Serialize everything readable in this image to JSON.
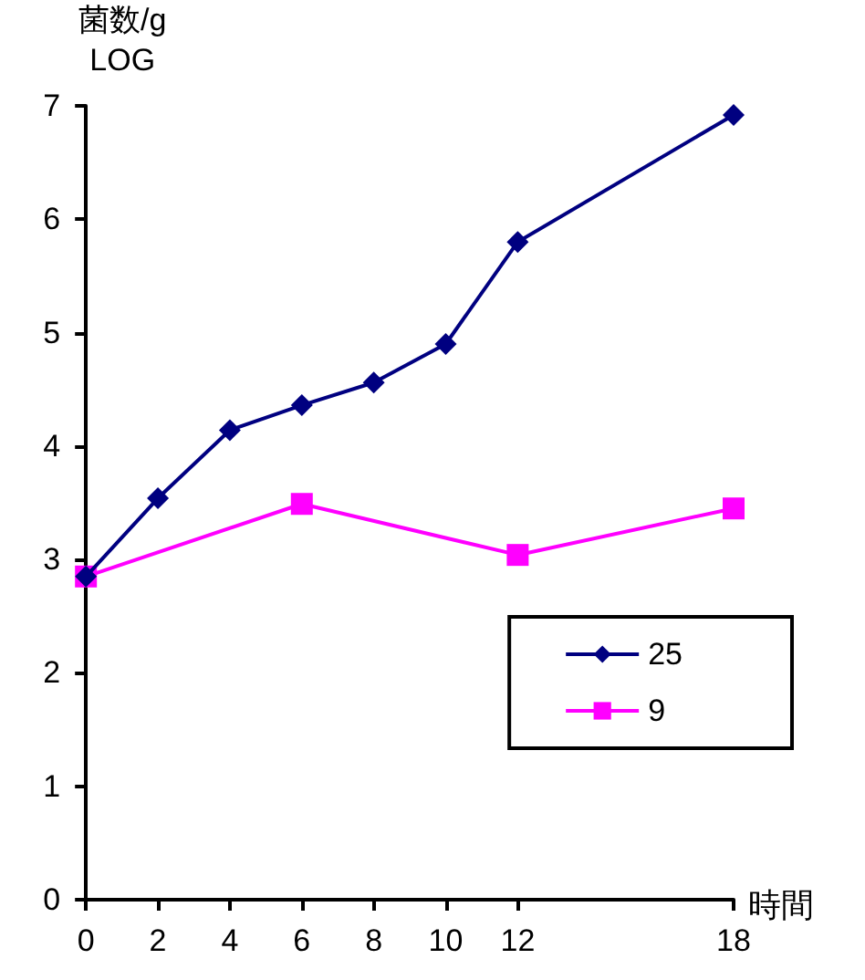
{
  "chart_data": {
    "type": "line",
    "xlabel": "時間",
    "ylabel": "菌数/g\nLOG",
    "x": [
      0,
      2,
      4,
      6,
      8,
      10,
      12,
      18
    ],
    "series": [
      {
        "name": "25",
        "color": "#000080",
        "marker": "diamond",
        "values": [
          2.85,
          3.54,
          4.14,
          4.36,
          4.56,
          4.9,
          5.8,
          6.92
        ]
      },
      {
        "name": "9",
        "color": "#ff00ff",
        "marker": "square",
        "x": [
          0,
          6,
          12,
          18
        ],
        "values": [
          2.85,
          3.49,
          3.04,
          3.45
        ]
      }
    ],
    "xlim": [
      0,
      18
    ],
    "xticks": [
      0,
      2,
      4,
      6,
      8,
      10,
      12,
      18
    ],
    "ylim": [
      0,
      7
    ],
    "yticks": [
      0,
      1,
      2,
      3,
      4,
      5,
      6,
      7
    ],
    "grid": false,
    "legend": "right",
    "line_style": "solid"
  }
}
